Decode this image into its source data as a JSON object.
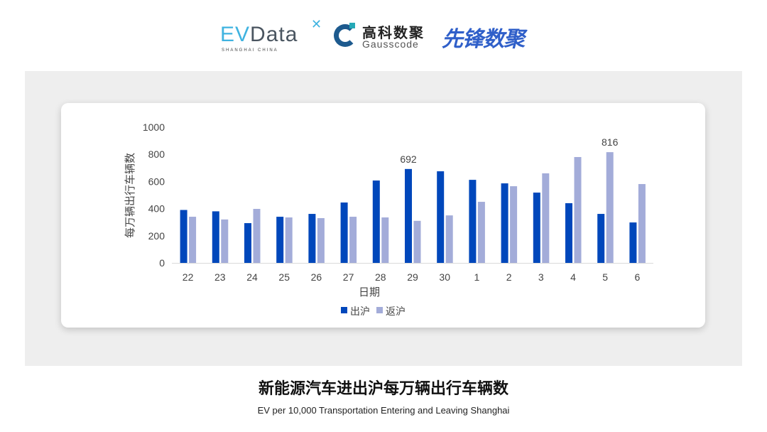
{
  "logos": {
    "evdata": {
      "name": "EVData",
      "tagline": "SHANGHAI CHINA"
    },
    "gausscode": {
      "cn": "高科数聚",
      "en": "Gausscode"
    },
    "xianfeng": {
      "cn": "先锋数聚"
    }
  },
  "title": "新能源汽车进出沪每万辆出行车辆数",
  "subtitle": "EV per 10,000 Transportation Entering and Leaving Shanghai",
  "chart_data": {
    "type": "bar",
    "xlabel": "日期",
    "ylabel": "每万辆出行车辆数",
    "ylim": [
      0,
      1000
    ],
    "yticks": [
      0,
      200,
      400,
      600,
      800,
      1000
    ],
    "grid": false,
    "legend_position": "bottom",
    "categories": [
      "22",
      "23",
      "24",
      "25",
      "26",
      "27",
      "28",
      "29",
      "30",
      "1",
      "2",
      "3",
      "4",
      "5",
      "6"
    ],
    "series": [
      {
        "name": "出沪",
        "color": "#0047bb",
        "values": [
          390,
          380,
          293,
          340,
          361,
          445,
          607,
          692,
          675,
          612,
          586,
          518,
          440,
          361,
          298
        ]
      },
      {
        "name": "返沪",
        "color": "#a3acd9",
        "values": [
          340,
          320,
          398,
          335,
          330,
          340,
          335,
          310,
          350,
          450,
          565,
          660,
          780,
          816,
          581
        ]
      }
    ],
    "data_labels": [
      {
        "series": 0,
        "category": "29",
        "text": "692"
      },
      {
        "series": 1,
        "category": "5",
        "text": "816"
      }
    ]
  }
}
